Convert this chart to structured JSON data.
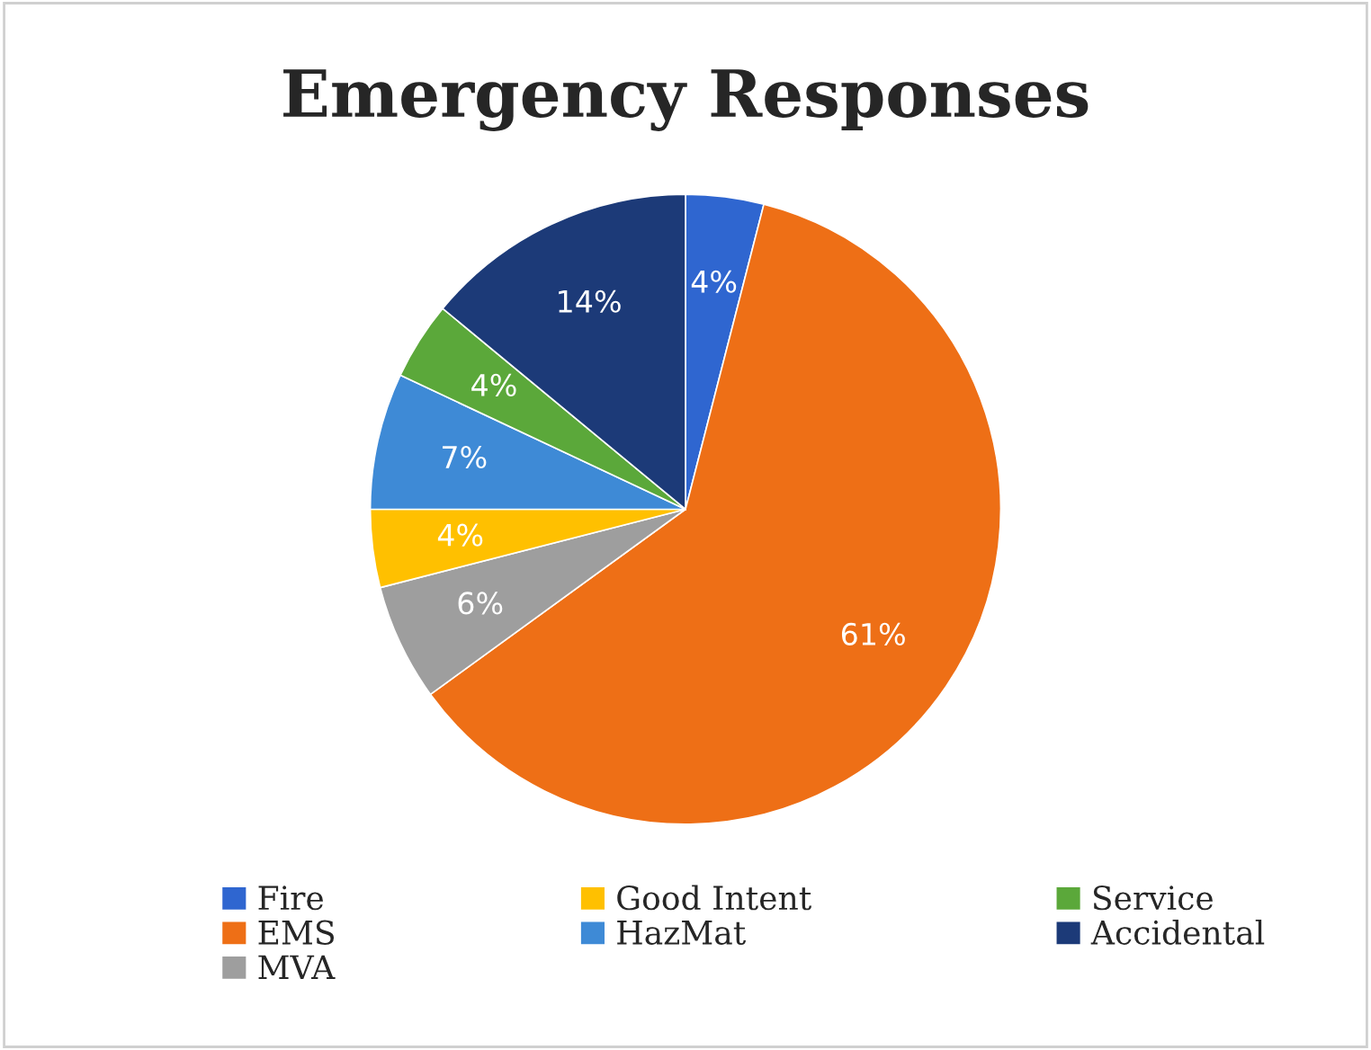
{
  "chart_data": {
    "type": "pie",
    "title": "Emergency Responses",
    "categories": [
      "Fire",
      "EMS",
      "MVA",
      "Good Intent",
      "HazMat",
      "Service",
      "Accidental"
    ],
    "values": [
      4,
      61,
      6,
      4,
      7,
      4,
      14
    ],
    "colors": [
      "#2f66d0",
      "#ee6f16",
      "#9e9e9e",
      "#ffc000",
      "#3e8ad6",
      "#5ba83a",
      "#1c3a78"
    ],
    "value_labels": [
      "4%",
      "61%",
      "6%",
      "4%",
      "7%",
      "4%",
      "14%"
    ],
    "legend": "bottom"
  }
}
